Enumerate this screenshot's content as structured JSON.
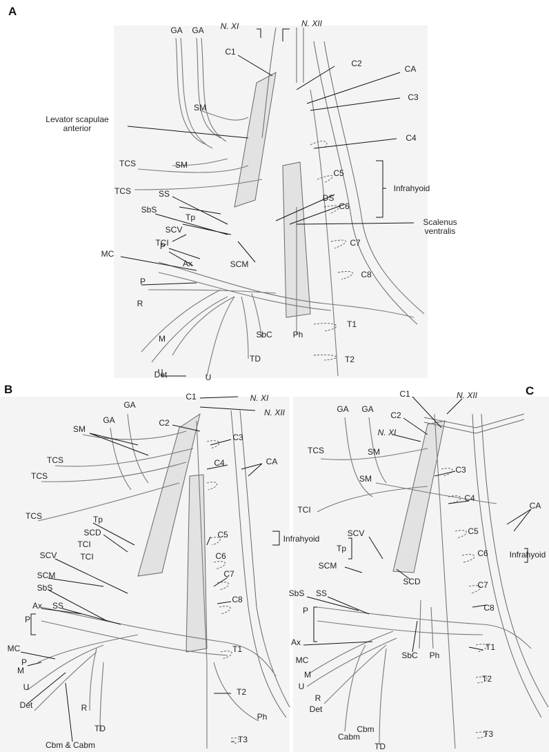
{
  "panels": [
    {
      "letter": "A",
      "labels": [
        "GA",
        "GA",
        "N. XI",
        "N. XII",
        "C1",
        "C2",
        "CA",
        "C3",
        "SM",
        "Levator scapulae",
        "anterior",
        "C4",
        "SM",
        "TCS",
        "TCS",
        "Infrahyoid",
        "C5",
        "SS",
        "Tp",
        "DS",
        "C6",
        "SCV",
        "SbS",
        "TCI",
        "Scalenus",
        "ventralis",
        "C7",
        "MC",
        "P",
        "Ax",
        "SCM",
        "C8",
        "P",
        "R",
        "T1",
        "SbC",
        "Ph",
        "M",
        "TD",
        "T2",
        "Det",
        "U"
      ]
    },
    {
      "letter": "B",
      "labels": [
        "GA",
        "GA",
        "C1",
        "N. XI",
        "N. XII",
        "SM",
        "C2",
        "C3",
        "TCS",
        "TCS",
        "C4",
        "CA",
        "TCS",
        "Tp",
        "SCD",
        "TCI",
        "TCI",
        "Infrahyoid",
        "C5",
        "SCV",
        "C6",
        "SCM",
        "SbS",
        "Ax",
        "SS",
        "C7",
        "P",
        "C8",
        "MC",
        "P",
        "T1",
        "M",
        "U",
        "Det",
        "R",
        "TD",
        "T2",
        "Ph",
        "Cbm & Cabm",
        "T3"
      ]
    },
    {
      "letter": "C",
      "labels": [
        "C1",
        "N. XII",
        "GA",
        "GA",
        "C2",
        "N. XI",
        "SM",
        "TCS",
        "SM",
        "C3",
        "TCI",
        "C4",
        "CA",
        "SCV",
        "Tp",
        "C5",
        "Infrahyoid",
        "SCM",
        "C6",
        "SCD",
        "SbS",
        "SS",
        "C7",
        "P",
        "C8",
        "Ax",
        "MC",
        "T1",
        "SbC",
        "Ph",
        "M",
        "U",
        "T2",
        "R",
        "Det",
        "Cbm",
        "Cabm",
        "TD",
        "T3"
      ]
    }
  ]
}
